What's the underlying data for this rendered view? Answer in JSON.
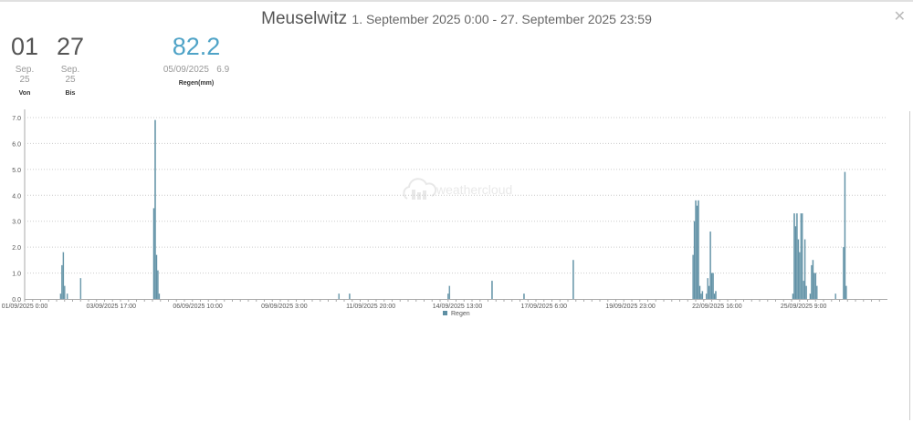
{
  "header": {
    "station": "Meuselwitz",
    "range": "1. September 2025 0:00 - 27. September 2025 23:59",
    "close_icon": "close-icon"
  },
  "stats": [
    {
      "value": "01",
      "sub": "Sep. 25",
      "label": "Von"
    },
    {
      "value": "27",
      "sub": "Sep. 25",
      "label": "Bis"
    },
    {
      "value": "82.2",
      "sub": "05/09/2025   6.9",
      "label": "Regen(mm)",
      "color": "#4fa3c7"
    }
  ],
  "watermark": "weathercloud",
  "chart_data": {
    "type": "bar",
    "title": "",
    "xlabel": "",
    "ylabel": "",
    "ylim": [
      0,
      7
    ],
    "yticks": [
      "0.0",
      "1.0",
      "2.0",
      "3.0",
      "4.0",
      "5.0",
      "6.0",
      "7.0"
    ],
    "xlim": [
      "01/09/2025 0:00",
      "27/09/2025 23:59"
    ],
    "xticks": [
      "01/09/2025 0:00",
      "03/09/2025 17:00",
      "06/09/2025 10:00",
      "09/09/2025 3:00",
      "11/09/2025 20:00",
      "14/09/2025 13:00",
      "17/09/2025 6:00",
      "19/09/2025 23:00",
      "22/09/2025 16:00",
      "25/09/2025 9:00"
    ],
    "grid": true,
    "legend": "bottom",
    "series": [
      {
        "name": "Regen",
        "color": "#5e8fa3",
        "points": [
          [
            "02/09/2025 3:00",
            0.2
          ],
          [
            "02/09/2025 4:00",
            1.3
          ],
          [
            "02/09/2025 5:00",
            1.8
          ],
          [
            "02/09/2025 6:00",
            0.5
          ],
          [
            "02/09/2025 8:00",
            0.2
          ],
          [
            "02/09/2025 18:00",
            0.8
          ],
          [
            "05/09/2025 1:00",
            3.5
          ],
          [
            "05/09/2025 2:00",
            6.9
          ],
          [
            "05/09/2025 3:00",
            1.7
          ],
          [
            "05/09/2025 4:00",
            1.1
          ],
          [
            "05/09/2025 5:00",
            0.2
          ],
          [
            "10/09/2025 20:00",
            0.2
          ],
          [
            "11/09/2025 4:00",
            0.2
          ],
          [
            "14/09/2025 6:00",
            0.2
          ],
          [
            "14/09/2025 7:00",
            0.5
          ],
          [
            "15/09/2025 15:00",
            0.7
          ],
          [
            "16/09/2025 15:00",
            0.2
          ],
          [
            "18/09/2025 4:00",
            1.5
          ],
          [
            "21/09/2025 22:00",
            1.7
          ],
          [
            "21/09/2025 23:00",
            3.0
          ],
          [
            "22/09/2025 0:00",
            3.8
          ],
          [
            "22/09/2025 1:00",
            3.6
          ],
          [
            "22/09/2025 2:00",
            3.8
          ],
          [
            "22/09/2025 3:00",
            0.5
          ],
          [
            "22/09/2025 4:00",
            0.2
          ],
          [
            "22/09/2025 5:00",
            0.3
          ],
          [
            "22/09/2025 8:00",
            0.2
          ],
          [
            "22/09/2025 9:00",
            0.8
          ],
          [
            "22/09/2025 10:00",
            0.5
          ],
          [
            "22/09/2025 11:00",
            2.6
          ],
          [
            "22/09/2025 12:00",
            1.0
          ],
          [
            "22/09/2025 13:00",
            1.0
          ],
          [
            "22/09/2025 14:00",
            0.2
          ],
          [
            "22/09/2025 15:00",
            0.3
          ],
          [
            "25/09/2025 1:00",
            0.2
          ],
          [
            "25/09/2025 2:00",
            3.3
          ],
          [
            "25/09/2025 3:00",
            2.8
          ],
          [
            "25/09/2025 4:00",
            3.3
          ],
          [
            "25/09/2025 5:00",
            2.3
          ],
          [
            "25/09/2025 6:00",
            1.8
          ],
          [
            "25/09/2025 7:00",
            3.3
          ],
          [
            "25/09/2025 8:00",
            3.3
          ],
          [
            "25/09/2025 9:00",
            0.7
          ],
          [
            "25/09/2025 10:00",
            2.3
          ],
          [
            "25/09/2025 11:00",
            0.5
          ],
          [
            "25/09/2025 14:00",
            0.2
          ],
          [
            "25/09/2025 15:00",
            1.3
          ],
          [
            "25/09/2025 16:00",
            1.5
          ],
          [
            "25/09/2025 17:00",
            1.0
          ],
          [
            "25/09/2025 18:00",
            1.0
          ],
          [
            "25/09/2025 19:00",
            0.5
          ],
          [
            "26/09/2025 9:00",
            0.2
          ],
          [
            "26/09/2025 15:00",
            2.0
          ],
          [
            "26/09/2025 16:00",
            4.9
          ],
          [
            "26/09/2025 17:00",
            0.5
          ]
        ]
      }
    ]
  }
}
